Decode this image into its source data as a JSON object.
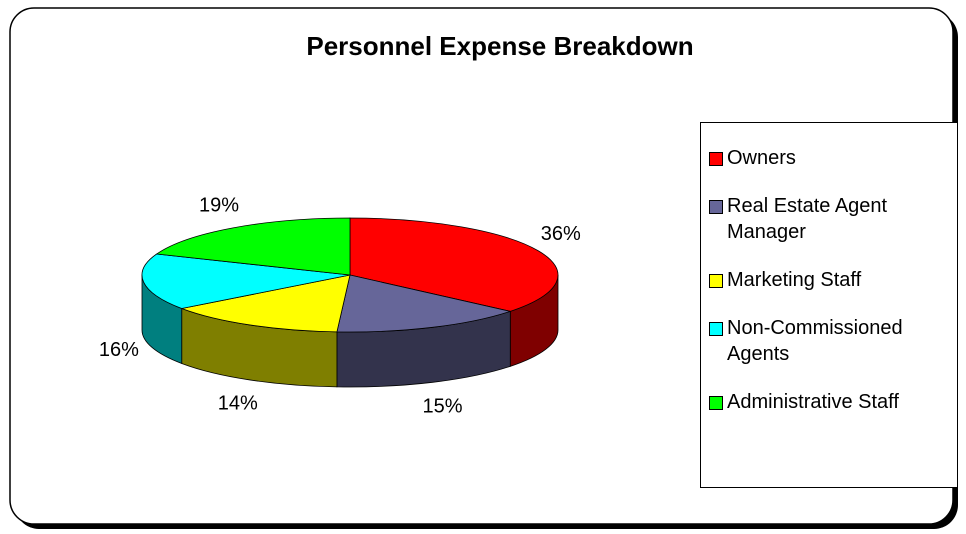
{
  "chart_data": {
    "type": "pie3d",
    "title": "Personnel Expense Breakdown",
    "categories": [
      "Owners",
      "Real Estate Agent Manager",
      "Marketing Staff",
      "Non-Commissioned Agents",
      "Administrative Staff"
    ],
    "values": [
      36,
      15,
      14,
      16,
      19
    ],
    "value_labels": [
      "36%",
      "15%",
      "14%",
      "16%",
      "19%"
    ],
    "colors": [
      "#ff0000",
      "#666699",
      "#ffff00",
      "#00ffff",
      "#00ff00"
    ],
    "legend": "right"
  }
}
